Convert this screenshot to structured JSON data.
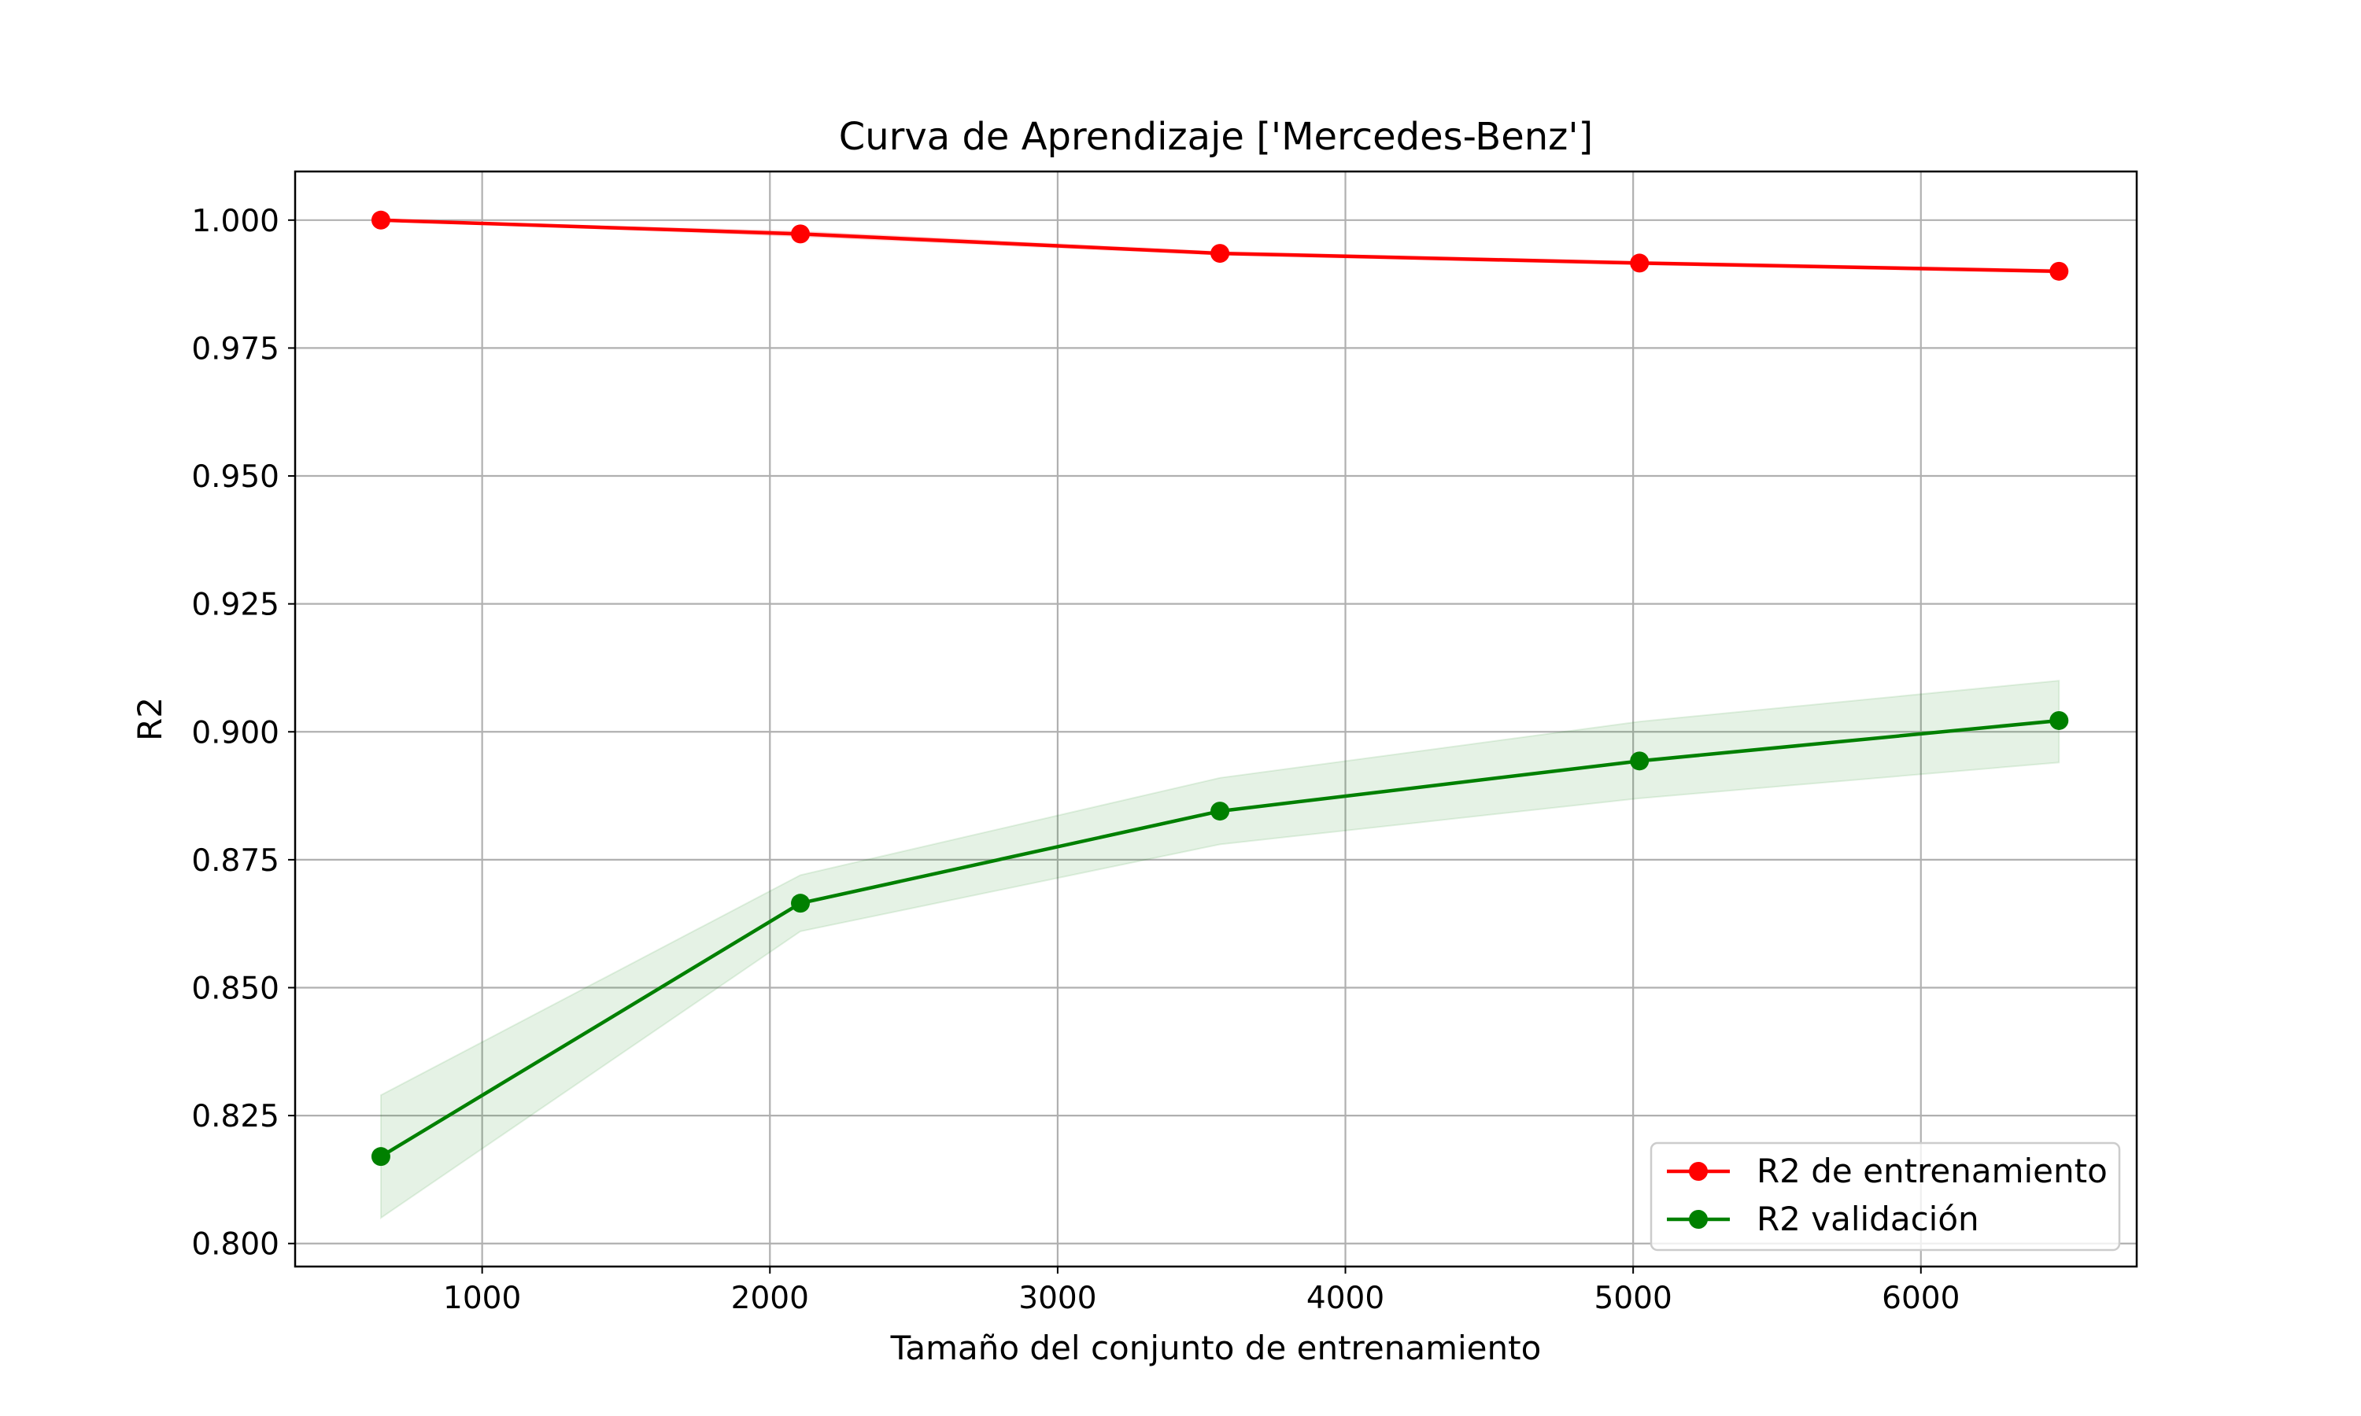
{
  "chart_data": {
    "type": "line",
    "title": "Curva de Aprendizaje ['Mercedes-Benz']",
    "xlabel": "Tamaño del conjunto de entrenamiento",
    "ylabel": "R2",
    "xlim": [
      350,
      6750
    ],
    "ylim": [
      0.7955,
      1.0095
    ],
    "xticks": [
      1000,
      2000,
      3000,
      4000,
      5000,
      6000
    ],
    "yticks": [
      0.8,
      0.825,
      0.85,
      0.875,
      0.9,
      0.925,
      0.95,
      0.975,
      1.0
    ],
    "xtick_labels": [
      "1000",
      "2000",
      "3000",
      "4000",
      "5000",
      "6000"
    ],
    "ytick_labels": [
      "0.800",
      "0.825",
      "0.850",
      "0.875",
      "0.900",
      "0.925",
      "0.950",
      "0.975",
      "1.000"
    ],
    "grid": true,
    "legend_position": "lower-right",
    "x": [
      648,
      2106,
      3564,
      5022,
      6480
    ],
    "series": [
      {
        "name": "R2 de entrenamiento",
        "color": "#ff0000",
        "marker": "circle",
        "values": [
          1.0,
          0.9973,
          0.9935,
          0.9916,
          0.99
        ],
        "band_lower": [
          1.0,
          0.9968,
          0.9932,
          0.9913,
          0.9897
        ],
        "band_upper": [
          1.0,
          0.9978,
          0.9938,
          0.9919,
          0.9903
        ]
      },
      {
        "name": "R2 validación",
        "color": "#008000",
        "marker": "circle",
        "values": [
          0.817,
          0.8665,
          0.8845,
          0.8943,
          0.9022
        ],
        "band_lower": [
          0.805,
          0.861,
          0.878,
          0.887,
          0.894
        ],
        "band_upper": [
          0.829,
          0.872,
          0.891,
          0.902,
          0.91
        ]
      }
    ]
  }
}
